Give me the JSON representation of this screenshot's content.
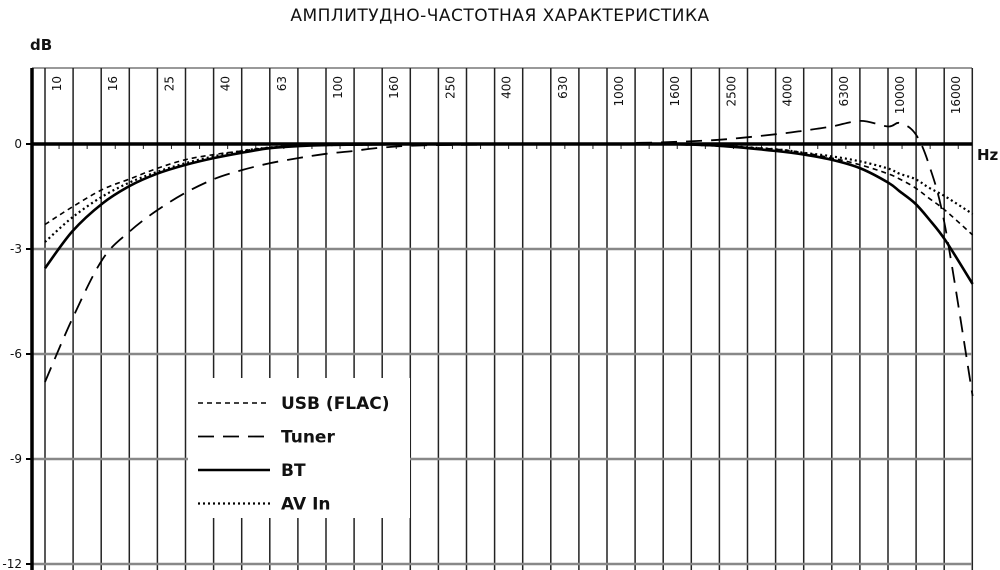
{
  "chart_data": {
    "type": "line",
    "title": "АМПЛИТУДНО-ЧАСТОТНАЯ ХАРАКТЕРИСТИКА",
    "xlabel": "Hz",
    "ylabel": "dB",
    "xscale": "log",
    "xlim": [
      10,
      20000
    ],
    "ylim": [
      -12,
      2.2
    ],
    "x_tick_labels": [
      "10",
      "16",
      "25",
      "40",
      "63",
      "100",
      "160",
      "250",
      "400",
      "630",
      "1000",
      "1600",
      "2500",
      "4000",
      "6300",
      "10000",
      "16000"
    ],
    "y_tick_labels": [
      "0",
      "-3",
      "-6",
      "-9",
      "-12"
    ],
    "y_ticks": [
      0,
      -3,
      -6,
      -9,
      -12
    ],
    "grid": true,
    "legend_placement": "bottom-left",
    "x": [
      10,
      12.5,
      16,
      20,
      25,
      31.5,
      40,
      50,
      63,
      80,
      100,
      125,
      160,
      250,
      1000,
      1250,
      1600,
      2500,
      4000,
      5000,
      6300,
      8000,
      10000,
      11000,
      12500,
      14000,
      16000,
      20000
    ],
    "series": [
      {
        "name": "USB (FLAC)",
        "style": "short-dash",
        "values": [
          -2.3,
          -1.8,
          -1.3,
          -1.0,
          -0.7,
          -0.45,
          -0.3,
          -0.2,
          -0.1,
          -0.05,
          -0.03,
          -0.02,
          -0.01,
          0,
          0,
          0,
          0,
          -0.05,
          -0.15,
          -0.25,
          -0.4,
          -0.6,
          -0.85,
          -1.0,
          -1.25,
          -1.55,
          -1.9,
          -2.6
        ]
      },
      {
        "name": "Tuner",
        "style": "long-dash",
        "values": [
          -6.8,
          -5.0,
          -3.3,
          -2.5,
          -1.9,
          -1.4,
          -1.0,
          -0.75,
          -0.55,
          -0.4,
          -0.28,
          -0.2,
          -0.1,
          -0.03,
          0,
          0.03,
          0.05,
          0.12,
          0.28,
          0.38,
          0.5,
          0.66,
          0.5,
          0.6,
          0.3,
          -0.6,
          -2.4,
          -7.2
        ]
      },
      {
        "name": "BT",
        "style": "solid",
        "values": [
          -3.55,
          -2.5,
          -1.7,
          -1.2,
          -0.85,
          -0.6,
          -0.4,
          -0.25,
          -0.12,
          -0.06,
          -0.03,
          -0.02,
          -0.01,
          0,
          0,
          0,
          0,
          -0.05,
          -0.2,
          -0.3,
          -0.45,
          -0.7,
          -1.1,
          -1.35,
          -1.7,
          -2.15,
          -2.75,
          -4.0
        ]
      },
      {
        "name": "AV In",
        "style": "dotted",
        "values": [
          -2.8,
          -2.1,
          -1.5,
          -1.1,
          -0.8,
          -0.55,
          -0.35,
          -0.2,
          -0.1,
          -0.05,
          -0.03,
          -0.02,
          -0.01,
          0,
          0,
          0,
          0,
          -0.05,
          -0.15,
          -0.25,
          -0.35,
          -0.5,
          -0.7,
          -0.85,
          -1.0,
          -1.25,
          -1.5,
          -2.0
        ]
      }
    ]
  }
}
